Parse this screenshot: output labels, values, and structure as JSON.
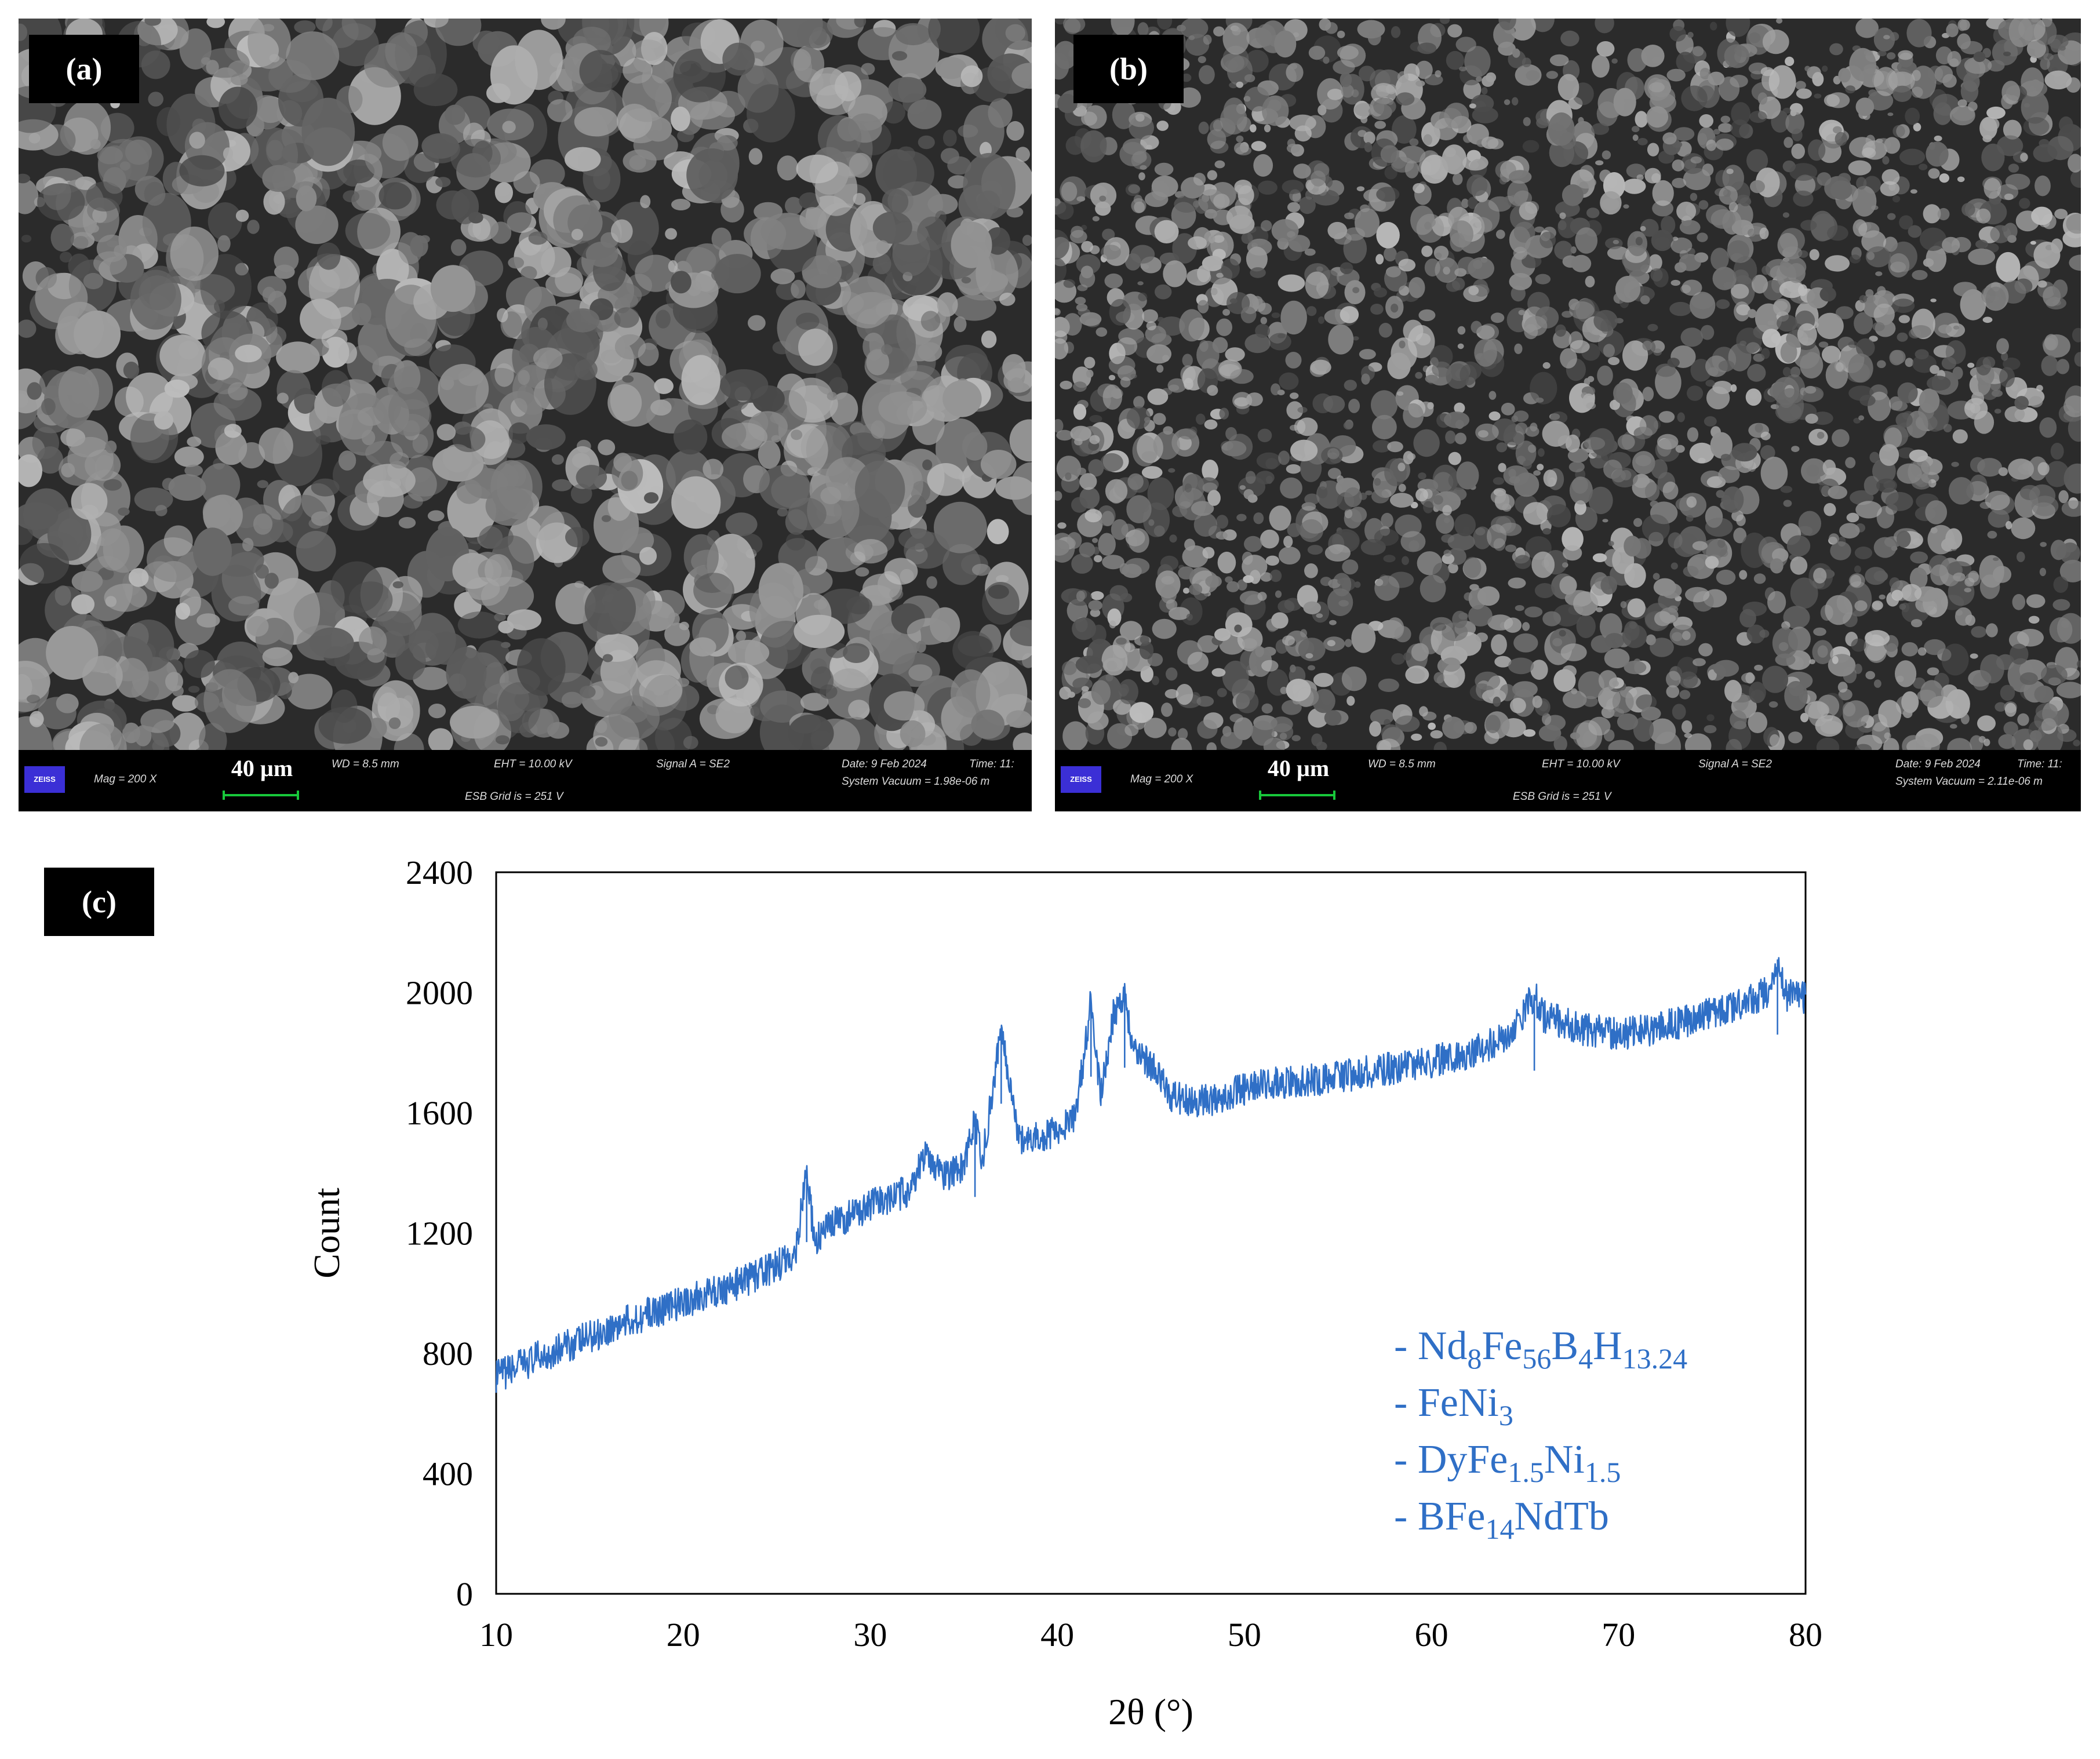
{
  "panels": {
    "a": {
      "label": "(a)",
      "databar": {
        "logo": "ZEISS",
        "mag": "Mag = 200 X",
        "scale": "40 µm",
        "wd": "WD = 8.5 mm",
        "eht": "EHT = 10.00 kV",
        "esb": "ESB Grid is = 251 V",
        "signal": "Signal A = SE2",
        "date": "Date: 9 Feb 2024",
        "time": "Time: 11:",
        "vacuum": "System Vacuum = 1.98e-06 m"
      }
    },
    "b": {
      "label": "(b)",
      "databar": {
        "logo": "ZEISS",
        "mag": "Mag = 200 X",
        "scale": "40 µm",
        "wd": "WD = 8.5 mm",
        "eht": "EHT = 10.00 kV",
        "esb": "ESB Grid is = 251 V",
        "signal": "Signal A = SE2",
        "date": "Date: 9 Feb 2024",
        "time": "Time: 11:",
        "vacuum": "System Vacuum = 2.11e-06 m"
      }
    },
    "c": {
      "label": "(c)"
    }
  },
  "chart_data": {
    "type": "line",
    "title": "",
    "xlabel": "2θ (°)",
    "ylabel": "Count",
    "xlim": [
      10,
      80
    ],
    "ylim": [
      0,
      2400
    ],
    "xticks": [
      10,
      20,
      30,
      40,
      50,
      60,
      70,
      80
    ],
    "yticks": [
      0,
      400,
      800,
      1200,
      1600,
      2000,
      2400
    ],
    "grid": false,
    "color": "#2f6fc6",
    "series": [
      {
        "x": [
          10,
          12,
          14,
          16,
          18,
          20,
          22,
          24,
          25,
          26,
          26.6,
          27,
          28,
          30,
          32,
          33,
          34,
          35,
          35.6,
          36,
          37,
          38,
          39,
          40,
          41,
          41.8,
          42.3,
          43,
          43.6,
          44,
          45,
          46,
          47,
          48,
          50,
          52,
          54,
          56,
          58,
          60,
          62,
          64,
          65.5,
          66,
          68,
          70,
          72,
          74,
          76,
          78,
          78.5,
          79,
          80
        ],
        "y": [
          720,
          780,
          830,
          880,
          930,
          970,
          1010,
          1060,
          1090,
          1130,
          1420,
          1170,
          1230,
          1290,
          1340,
          1460,
          1390,
          1420,
          1570,
          1440,
          1880,
          1500,
          1520,
          1540,
          1590,
          1970,
          1650,
          1930,
          2000,
          1820,
          1760,
          1660,
          1640,
          1640,
          1680,
          1700,
          1710,
          1730,
          1750,
          1770,
          1800,
          1850,
          1990,
          1920,
          1880,
          1860,
          1880,
          1910,
          1950,
          2000,
          2110,
          1990,
          1980
        ]
      }
    ],
    "legend_position": "bottom-right",
    "legend": [
      {
        "prefix": "- ",
        "parts": [
          [
            "Nd",
            ""
          ],
          [
            "8",
            "sub"
          ],
          [
            "Fe",
            ""
          ],
          [
            "56",
            "sub"
          ],
          [
            "B",
            ""
          ],
          [
            "4",
            "sub"
          ],
          [
            "H",
            ""
          ],
          [
            "13.24",
            "sub"
          ]
        ]
      },
      {
        "prefix": "- ",
        "parts": [
          [
            "FeNi",
            ""
          ],
          [
            "3",
            "sub"
          ]
        ]
      },
      {
        "prefix": "- ",
        "parts": [
          [
            "DyFe",
            ""
          ],
          [
            "1.5",
            "sub"
          ],
          [
            "Ni",
            ""
          ],
          [
            "1.5",
            "sub"
          ]
        ]
      },
      {
        "prefix": "- ",
        "parts": [
          [
            "BFe",
            ""
          ],
          [
            "14",
            "sub"
          ],
          [
            "NdTb",
            ""
          ]
        ]
      }
    ]
  }
}
